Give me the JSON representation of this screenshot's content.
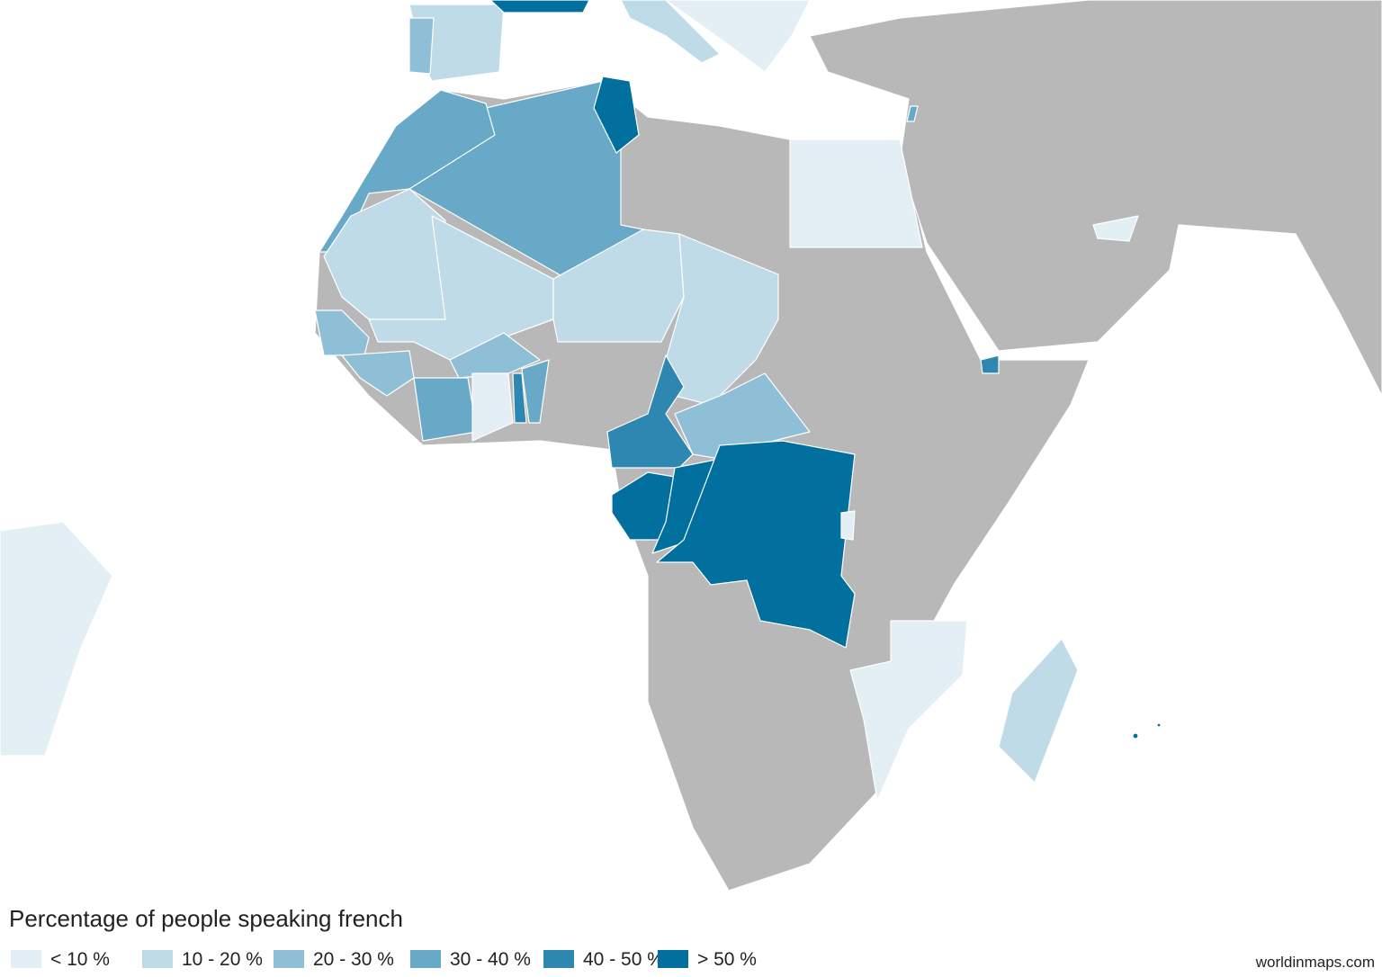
{
  "legend": {
    "title": "Percentage of people speaking french",
    "items": [
      {
        "label": "< 10 %",
        "color": "#e3eff5"
      },
      {
        "label": "10 - 20 %",
        "color": "#bfdbe7"
      },
      {
        "label": "20 - 30 %",
        "color": "#8fbfd7"
      },
      {
        "label": "30 - 40 %",
        "color": "#67a9c7"
      },
      {
        "label": "40 - 50 %",
        "color": "#2e87b0"
      },
      {
        "label": "> 50 %",
        "color": "#01709f"
      }
    ]
  },
  "credit": "worldinmaps.com"
}
